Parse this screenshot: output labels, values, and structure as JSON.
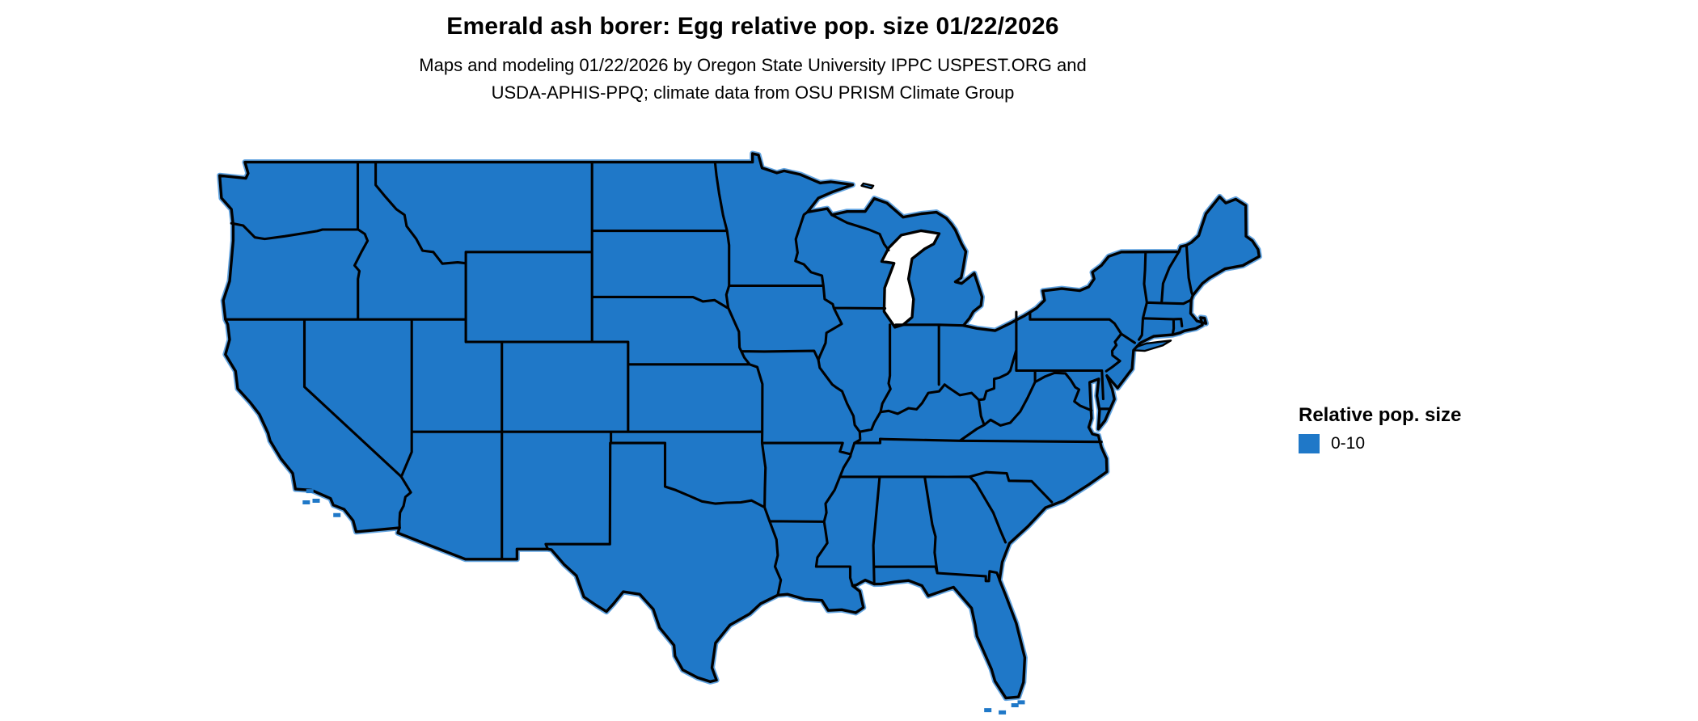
{
  "title": "Emerald ash borer: Egg relative pop. size 01/22/2026",
  "subtitle_line1": "Maps and modeling 01/22/2026 by Oregon State University IPPC USPEST.ORG and",
  "subtitle_line2": "USDA-APHIS-PPQ; climate data from OSU PRISM Climate Group",
  "legend": {
    "title": "Relative pop. size",
    "items": [
      {
        "label": "0-10",
        "color": "#1f78c8"
      }
    ]
  },
  "map": {
    "region": "Contiguous United States",
    "fill_color": "#1f78c8",
    "border_color": "#000000",
    "coast_halo_color": "#61a3e0",
    "background_color": "#ffffff"
  }
}
